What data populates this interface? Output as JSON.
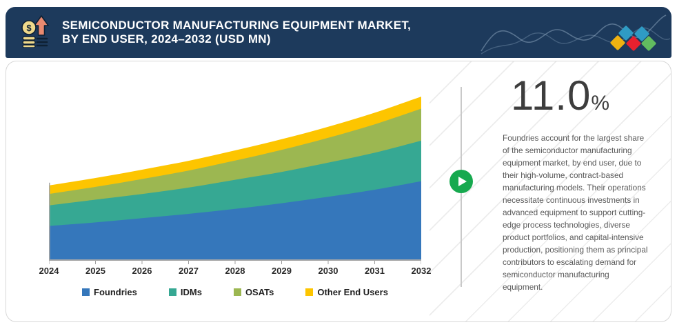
{
  "header": {
    "title_line1": "SEMICONDUCTOR MANUFACTURING EQUIPMENT MARKET,",
    "title_line2": "BY END USER, 2024–2032 (USD MN)",
    "bg_color": "#1D3A5C",
    "icon_name": "coins-growth-icon",
    "logo_diamond_colors": [
      "#2F9BC4",
      "#2F9BC4",
      "#EFB211",
      "#E8212E",
      "#62BB5F"
    ]
  },
  "stat_panel": {
    "value": "11.0",
    "unit": "%",
    "description": "Foundries account for the largest share of the semiconductor manufacturing equipment market, by end user, due to their high-volume, contract-based manufacturing models. Their operations necessitate continuous investments in advanced equipment to support cutting-edge process technologies, diverse product portfolios, and capital-intensive production, positioning them as principal contributors to escalating demand for semiconductor manufacturing equipment."
  },
  "play_button": {
    "color": "#17A94F",
    "icon": "play-icon"
  },
  "chart_data": {
    "type": "area",
    "stacked": true,
    "title": "Semiconductor Manufacturing Equipment Market, by End User, 2024–2032 (USD MN)",
    "x": [
      2024,
      2025,
      2026,
      2027,
      2028,
      2029,
      2030,
      2031,
      2032
    ],
    "series": [
      {
        "name": "Foundries",
        "color": "#3577BB",
        "values": [
          47,
          52,
          58,
          64,
          71,
          79,
          88,
          98,
          110
        ]
      },
      {
        "name": "IDMs",
        "color": "#36A893",
        "values": [
          29,
          32,
          34,
          37,
          41,
          44,
          48,
          52,
          57
        ]
      },
      {
        "name": "OSATs",
        "color": "#9CB751",
        "values": [
          16,
          18,
          21,
          24,
          27,
          31,
          35,
          40,
          45
        ]
      },
      {
        "name": "Other End Users",
        "color": "#FDC500",
        "values": [
          12,
          12.5,
          13.1,
          13.7,
          14.3,
          15,
          15.6,
          16.3,
          17
        ]
      }
    ],
    "xlabel": "",
    "ylabel": "",
    "y_axis_labels_visible": false,
    "values_note": "No y-axis scale shown in figure; values are relative units estimated from band heights (USD MN implied by title).",
    "ylim": [
      0,
      236
    ],
    "grid": false,
    "legend_position": "bottom",
    "axis_color": "#a8a8a8"
  }
}
